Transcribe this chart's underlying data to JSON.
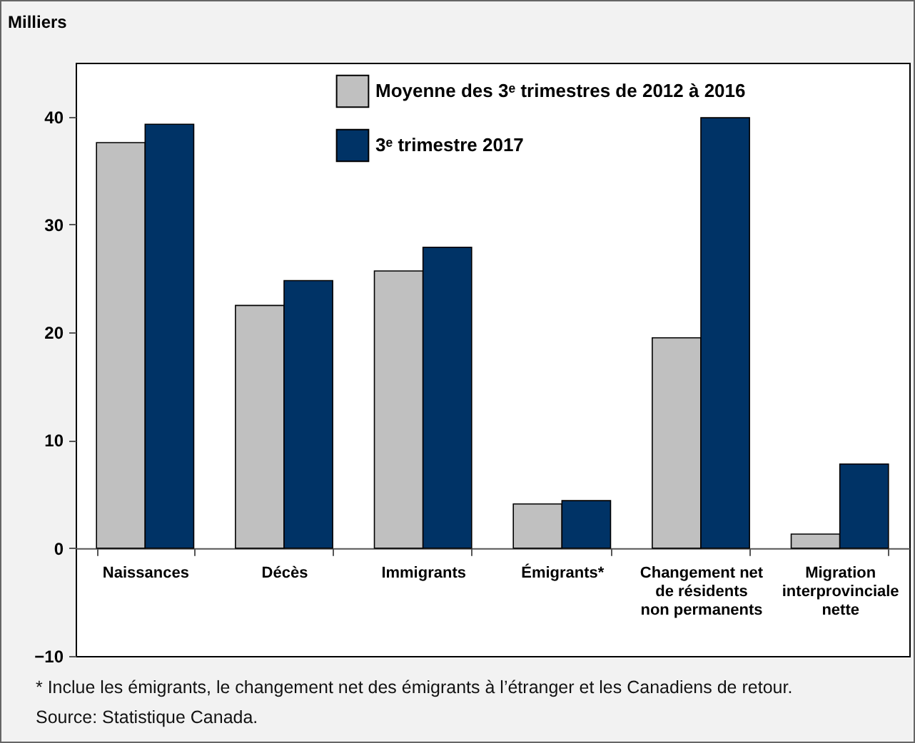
{
  "chart_data": {
    "type": "bar",
    "ylabel": "Milliers",
    "categories": [
      "Naissances",
      "Décès",
      "Immigrants",
      "Émigrants*",
      "Changement net\nde résidents\nnon permanents",
      "Migration\ninterprovinciale\nnette"
    ],
    "series": [
      {
        "name": "Moyenne des 3ᵉ trimestres de 2012 à 2016",
        "color": "#c0c0c0",
        "values": [
          37.6,
          22.5,
          25.7,
          4.1,
          19.5,
          1.3
        ]
      },
      {
        "name": "3ᵉ trimestre 2017",
        "color": "#003366",
        "values": [
          39.3,
          24.8,
          27.9,
          4.4,
          39.9,
          7.8
        ]
      }
    ],
    "ylim": [
      -10,
      45
    ],
    "yticks": [
      -10,
      0,
      10,
      20,
      30,
      40
    ],
    "grid": false,
    "legend": "top",
    "annotations": [
      "*  Inclue les émigrants, le changement net des émigrants à l’étranger et les Canadiens de retour.",
      "Source: Statistique  Canada."
    ]
  }
}
